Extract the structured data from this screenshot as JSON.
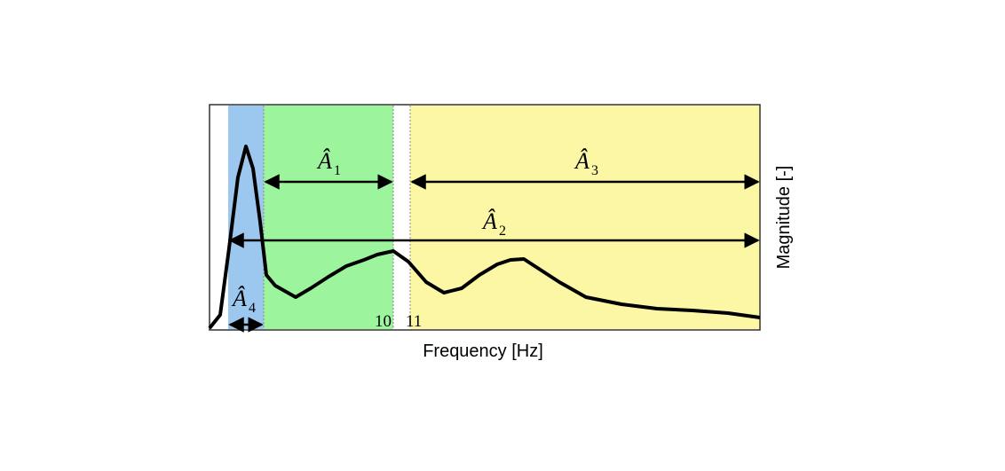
{
  "axes": {
    "x_label": "Frequency [Hz]",
    "y_label": "Magnitude [-]"
  },
  "ticks": [
    "10",
    "11"
  ],
  "bands": [
    {
      "label": "Â",
      "subscript": "1"
    },
    {
      "label": "Â",
      "subscript": "2"
    },
    {
      "label": "Â",
      "subscript": "3"
    },
    {
      "label": "Â",
      "subscript": "4"
    }
  ]
}
